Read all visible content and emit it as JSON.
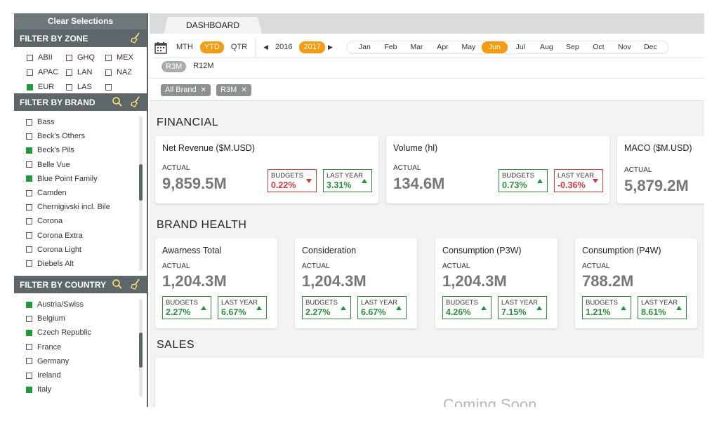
{
  "sidebar": {
    "clear_label": "Clear Selections",
    "zone": {
      "title": "FILTER BY ZONE",
      "items": [
        {
          "label": "ABII",
          "checked": false
        },
        {
          "label": "GHQ",
          "checked": false
        },
        {
          "label": "MEX",
          "checked": false
        },
        {
          "label": "APAC",
          "checked": false
        },
        {
          "label": "LAN",
          "checked": false
        },
        {
          "label": "NAZ",
          "checked": false
        },
        {
          "label": "EUR",
          "checked": true
        },
        {
          "label": "LAS",
          "checked": false
        },
        {
          "label": "",
          "checked": false
        }
      ]
    },
    "brand": {
      "title": "FILTER BY BRAND",
      "items": [
        {
          "label": "Bass",
          "checked": false
        },
        {
          "label": "Beck's Others",
          "checked": false
        },
        {
          "label": "Beck's Pils",
          "checked": true
        },
        {
          "label": "Belle Vue",
          "checked": false
        },
        {
          "label": "Blue Point Family",
          "checked": true
        },
        {
          "label": "Camden",
          "checked": false
        },
        {
          "label": "Chernigivski incl. Bile",
          "checked": false
        },
        {
          "label": "Corona",
          "checked": false
        },
        {
          "label": "Corona Extra",
          "checked": false
        },
        {
          "label": "Corona Light",
          "checked": false
        },
        {
          "label": "Diebels Alt",
          "checked": false
        }
      ]
    },
    "country": {
      "title": "FILTER BY COUNTRY",
      "items": [
        {
          "label": "Austria/Swiss",
          "checked": true
        },
        {
          "label": "Belgium",
          "checked": false
        },
        {
          "label": "Czech Republic",
          "checked": true
        },
        {
          "label": "France",
          "checked": false
        },
        {
          "label": "Germany",
          "checked": false
        },
        {
          "label": "Ireland",
          "checked": false
        },
        {
          "label": "Italy",
          "checked": true
        }
      ]
    }
  },
  "header": {
    "tab_label": "DASHBOARD"
  },
  "controls": {
    "periods": [
      {
        "label": "MTH",
        "active": false
      },
      {
        "label": "YTD",
        "active": true
      },
      {
        "label": "QTR",
        "active": false
      }
    ],
    "years": [
      {
        "label": "2016",
        "active": false
      },
      {
        "label": "2017",
        "active": true
      }
    ],
    "months": [
      {
        "label": "Jan",
        "active": false
      },
      {
        "label": "Feb",
        "active": false
      },
      {
        "label": "Mar",
        "active": false
      },
      {
        "label": "Apr",
        "active": false
      },
      {
        "label": "May",
        "active": false
      },
      {
        "label": "Jun",
        "active": true
      },
      {
        "label": "Jul",
        "active": false
      },
      {
        "label": "Aug",
        "active": false
      },
      {
        "label": "Sep",
        "active": false
      },
      {
        "label": "Oct",
        "active": false
      },
      {
        "label": "Nov",
        "active": false
      },
      {
        "label": "Dec",
        "active": false
      }
    ],
    "rolling": [
      {
        "label": "R3M",
        "active": true
      },
      {
        "label": "R12M",
        "active": false
      }
    ],
    "tags": [
      "All Brand",
      "R3M"
    ]
  },
  "sections": {
    "financial": "FINANCIAL",
    "brand_health": "BRAND HEALTH",
    "sales": "SALES"
  },
  "financial_cards": [
    {
      "title": "Net Revenue ($M.USD)",
      "actual_label": "ACTUAL",
      "value": "9,859.5M",
      "budgets": {
        "label": "BUDGETS",
        "value": "0.22%",
        "trend": "down"
      },
      "last_year": {
        "label": "LAST YEAR",
        "value": "3.31%",
        "trend": "up"
      }
    },
    {
      "title": "Volume (hl)",
      "actual_label": "ACTUAL",
      "value": "134.6M",
      "budgets": {
        "label": "BUDGETS",
        "value": "0.73%",
        "trend": "up"
      },
      "last_year": {
        "label": "LAST YEAR",
        "value": "-0.36%",
        "trend": "down"
      }
    },
    {
      "title": "MACO ($M.USD)",
      "actual_label": "ACTUAL",
      "value": "5,879.2M"
    }
  ],
  "brand_cards": [
    {
      "title": "Awarness Total",
      "actual_label": "ACTUAL",
      "value": "1,204.3M",
      "budgets": {
        "label": "BUDGETS",
        "value": "2.27%",
        "trend": "up"
      },
      "last_year": {
        "label": "LAST YEAR",
        "value": "6.67%",
        "trend": "up"
      }
    },
    {
      "title": "Consideration",
      "actual_label": "ACTUAL",
      "value": "1,204.3M",
      "budgets": {
        "label": "BUDGETS",
        "value": "2.27%",
        "trend": "up"
      },
      "last_year": {
        "label": "LAST YEAR",
        "value": "6.67%",
        "trend": "up"
      }
    },
    {
      "title": "Consumption (P3W)",
      "actual_label": "ACTUAL",
      "value": "1,204.3M",
      "budgets": {
        "label": "BUDGETS",
        "value": "4.26%",
        "trend": "up"
      },
      "last_year": {
        "label": "LAST YEAR",
        "value": "7.15%",
        "trend": "up"
      }
    },
    {
      "title": "Consumption (P4W)",
      "actual_label": "ACTUAL",
      "value": "788.2M",
      "budgets": {
        "label": "BUDGETS",
        "value": "1.21%",
        "trend": "up"
      },
      "last_year": {
        "label": "LAST YEAR",
        "value": "8.61%",
        "trend": "up"
      }
    }
  ],
  "sales_placeholder": "Coming Soon",
  "colors": {
    "accent": "#f39c12",
    "up": "#2a8f3e",
    "down": "#d9363e",
    "checked": "#1f9a3a"
  }
}
